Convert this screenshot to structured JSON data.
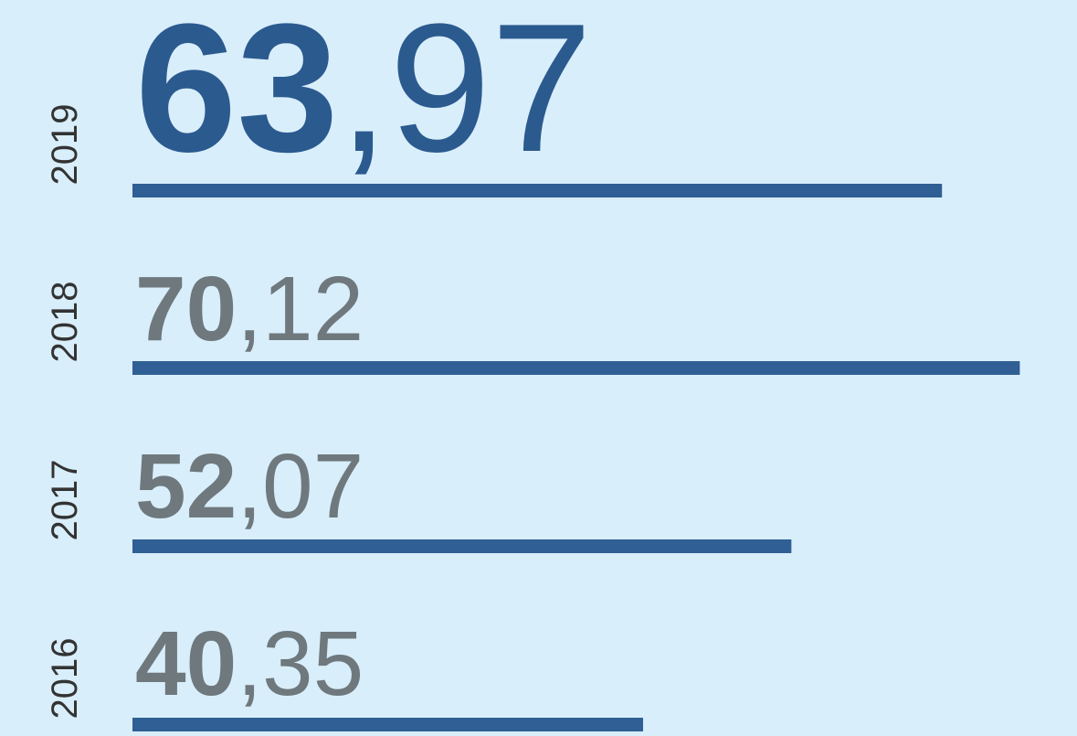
{
  "chart_data": {
    "type": "bar",
    "orientation": "horizontal",
    "categories": [
      "2019",
      "2018",
      "2017",
      "2016"
    ],
    "values": [
      63.97,
      70.12,
      52.07,
      40.35
    ],
    "value_labels": [
      "63,97",
      "70,12",
      "52,07",
      "40,35"
    ],
    "color": "#2f5f94",
    "label_colors": [
      "#2b5a8f",
      "#6e787d",
      "#6e787d",
      "#6e787d"
    ],
    "xlim": [
      0,
      75
    ]
  }
}
